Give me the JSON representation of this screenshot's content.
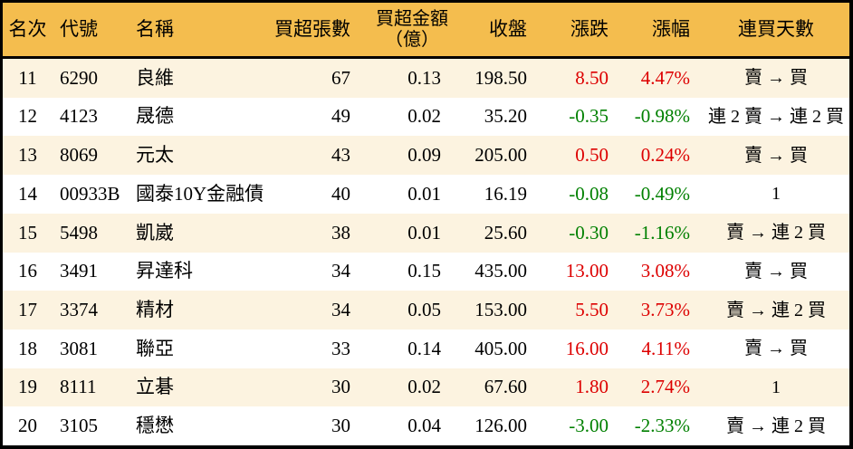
{
  "chart_data": {
    "type": "table",
    "title": "",
    "columns": [
      {
        "key": "rank",
        "label": "名次",
        "align": "center"
      },
      {
        "key": "code",
        "label": "代號",
        "align": "left"
      },
      {
        "key": "name",
        "label": "名稱",
        "align": "left"
      },
      {
        "key": "buy_volume",
        "label": "買超張數",
        "align": "right"
      },
      {
        "key": "buy_amount",
        "label": "買超金額",
        "label2": "（億）",
        "align": "right"
      },
      {
        "key": "close",
        "label": "收盤",
        "align": "right"
      },
      {
        "key": "change",
        "label": "漲跌",
        "align": "right"
      },
      {
        "key": "change_pct",
        "label": "漲幅",
        "align": "right"
      },
      {
        "key": "streak",
        "label": "連買天數",
        "align": "center"
      }
    ],
    "rows": [
      {
        "rank": "11",
        "code": "6290",
        "name": "良維",
        "buy_volume": "67",
        "buy_amount": "0.13",
        "close": "198.50",
        "change": "8.50",
        "change_pct": "4.47%",
        "streak": "賣 → 買",
        "trend": "up"
      },
      {
        "rank": "12",
        "code": "4123",
        "name": "晟德",
        "buy_volume": "49",
        "buy_amount": "0.02",
        "close": "35.20",
        "change": "-0.35",
        "change_pct": "-0.98%",
        "streak": "連 2 賣 → 連 2 買",
        "trend": "down"
      },
      {
        "rank": "13",
        "code": "8069",
        "name": "元太",
        "buy_volume": "43",
        "buy_amount": "0.09",
        "close": "205.00",
        "change": "0.50",
        "change_pct": "0.24%",
        "streak": "賣 → 買",
        "trend": "up"
      },
      {
        "rank": "14",
        "code": "00933B",
        "name": "國泰10Y金融債",
        "buy_volume": "40",
        "buy_amount": "0.01",
        "close": "16.19",
        "change": "-0.08",
        "change_pct": "-0.49%",
        "streak": "1",
        "trend": "down"
      },
      {
        "rank": "15",
        "code": "5498",
        "name": "凱崴",
        "buy_volume": "38",
        "buy_amount": "0.01",
        "close": "25.60",
        "change": "-0.30",
        "change_pct": "-1.16%",
        "streak": "賣 → 連 2 買",
        "trend": "down"
      },
      {
        "rank": "16",
        "code": "3491",
        "name": "昇達科",
        "buy_volume": "34",
        "buy_amount": "0.15",
        "close": "435.00",
        "change": "13.00",
        "change_pct": "3.08%",
        "streak": "賣 → 買",
        "trend": "up"
      },
      {
        "rank": "17",
        "code": "3374",
        "name": "精材",
        "buy_volume": "34",
        "buy_amount": "0.05",
        "close": "153.00",
        "change": "5.50",
        "change_pct": "3.73%",
        "streak": "賣 → 連 2 買",
        "trend": "up"
      },
      {
        "rank": "18",
        "code": "3081",
        "name": "聯亞",
        "buy_volume": "33",
        "buy_amount": "0.14",
        "close": "405.00",
        "change": "16.00",
        "change_pct": "4.11%",
        "streak": "賣 → 買",
        "trend": "up"
      },
      {
        "rank": "19",
        "code": "8111",
        "name": "立碁",
        "buy_volume": "30",
        "buy_amount": "0.02",
        "close": "67.60",
        "change": "1.80",
        "change_pct": "2.74%",
        "streak": "1",
        "trend": "up"
      },
      {
        "rank": "20",
        "code": "3105",
        "name": "穩懋",
        "buy_volume": "30",
        "buy_amount": "0.04",
        "close": "126.00",
        "change": "-3.00",
        "change_pct": "-2.33%",
        "streak": "賣 → 連 2 買",
        "trend": "down"
      }
    ],
    "colors": {
      "header_bg": "#F4BD4E",
      "row_alt_bg": "#FCF3E0",
      "row_bg": "#FFFFFF",
      "up": "#DD0000",
      "down": "#008000",
      "border": "#000000",
      "text": "#000000"
    },
    "layout": {
      "grid": "off",
      "alternating_rows": true,
      "up_color_meaning": "price up (red, TW convention)",
      "down_color_meaning": "price down (green, TW convention)"
    }
  }
}
